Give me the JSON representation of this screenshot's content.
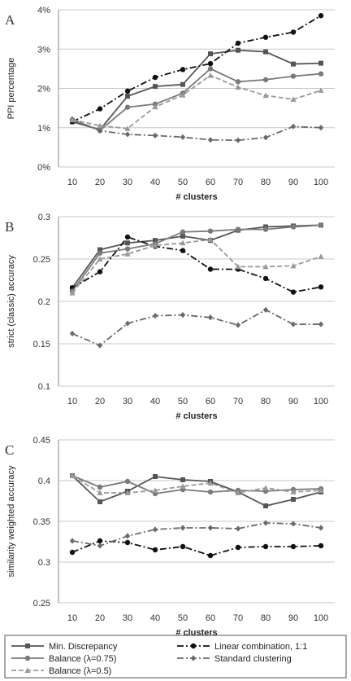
{
  "chart_data": [
    {
      "type": "line",
      "panel_label": "A",
      "x": [
        10,
        20,
        30,
        40,
        50,
        60,
        70,
        80,
        90,
        100
      ],
      "xlabel": "# clusters",
      "ylabel": "PPI percentage",
      "ylim": [
        0,
        4
      ],
      "yticks": [
        "0%",
        "1%",
        "2%",
        "3%",
        "4%"
      ],
      "grid": "horizontal",
      "series": [
        {
          "name": "Min. Discrepancy",
          "values": [
            1.15,
            0.95,
            1.8,
            2.05,
            2.1,
            2.88,
            2.97,
            2.93,
            2.62,
            2.64
          ]
        },
        {
          "name": "Linear combination, 1:1",
          "values": [
            1.15,
            1.48,
            1.93,
            2.28,
            2.48,
            2.63,
            3.15,
            3.3,
            3.43,
            3.85
          ]
        },
        {
          "name": "Balance (λ=0.75)",
          "values": [
            1.2,
            0.93,
            1.52,
            1.6,
            1.88,
            2.5,
            2.17,
            2.22,
            2.31,
            2.37
          ]
        },
        {
          "name": "Standard clustering",
          "values": [
            1.22,
            0.92,
            0.83,
            0.8,
            0.76,
            0.69,
            0.68,
            0.75,
            1.03,
            1.0
          ]
        },
        {
          "name": "Balance (λ=0.5)",
          "values": [
            1.2,
            1.05,
            0.98,
            1.53,
            1.83,
            2.33,
            2.03,
            1.82,
            1.72,
            1.95
          ]
        }
      ]
    },
    {
      "type": "line",
      "panel_label": "B",
      "x": [
        10,
        20,
        30,
        40,
        50,
        60,
        70,
        80,
        90,
        100
      ],
      "xlabel": "# clusters",
      "ylabel": "strict (classic) accuracy",
      "ylim": [
        0.1,
        0.3
      ],
      "yticks": [
        "0.1",
        "0.15",
        "0.2",
        "0.25",
        "0.3"
      ],
      "grid": "horizontal",
      "series": [
        {
          "name": "Min. Discrepancy",
          "values": [
            0.216,
            0.261,
            0.269,
            0.272,
            0.277,
            0.272,
            0.284,
            0.288,
            0.289,
            0.29
          ]
        },
        {
          "name": "Linear combination, 1:1",
          "values": [
            0.216,
            0.235,
            0.276,
            0.265,
            0.26,
            0.238,
            0.238,
            0.227,
            0.211,
            0.217
          ]
        },
        {
          "name": "Balance (λ=0.75)",
          "values": [
            0.212,
            0.257,
            0.262,
            0.268,
            0.282,
            0.283,
            0.285,
            0.285,
            0.288,
            0.29
          ]
        },
        {
          "name": "Standard clustering",
          "values": [
            0.162,
            0.148,
            0.174,
            0.183,
            0.184,
            0.181,
            0.172,
            0.19,
            0.173,
            0.173
          ]
        },
        {
          "name": "Balance (λ=0.5)",
          "values": [
            0.21,
            0.25,
            0.256,
            0.266,
            0.269,
            0.273,
            0.241,
            0.241,
            0.242,
            0.253
          ]
        }
      ]
    },
    {
      "type": "line",
      "panel_label": "C",
      "x": [
        10,
        20,
        30,
        40,
        50,
        60,
        70,
        80,
        90,
        100
      ],
      "xlabel": "# clusters",
      "ylabel": "similarity weighted accuracy",
      "ylim": [
        0.25,
        0.45
      ],
      "yticks": [
        "0.25",
        "0.3",
        "0.35",
        "0.4",
        "0.45"
      ],
      "grid": "horizontal",
      "series": [
        {
          "name": "Min. Discrepancy",
          "values": [
            0.406,
            0.374,
            0.387,
            0.405,
            0.401,
            0.399,
            0.386,
            0.369,
            0.377,
            0.386
          ]
        },
        {
          "name": "Linear combination, 1:1",
          "values": [
            0.312,
            0.326,
            0.324,
            0.315,
            0.319,
            0.308,
            0.318,
            0.319,
            0.319,
            0.32
          ]
        },
        {
          "name": "Balance (λ=0.75)",
          "values": [
            0.406,
            0.392,
            0.399,
            0.384,
            0.389,
            0.386,
            0.388,
            0.387,
            0.389,
            0.39
          ]
        },
        {
          "name": "Standard clustering",
          "values": [
            0.326,
            0.32,
            0.332,
            0.34,
            0.342,
            0.342,
            0.341,
            0.348,
            0.347,
            0.342
          ]
        },
        {
          "name": "Balance (λ=0.5)",
          "values": [
            0.406,
            0.385,
            0.385,
            0.388,
            0.393,
            0.397,
            0.385,
            0.391,
            0.386,
            0.388
          ]
        }
      ]
    }
  ],
  "legend": {
    "placement": "bottom",
    "entries": [
      {
        "name": "Min. Discrepancy",
        "color": "#555555",
        "dash": "solid",
        "marker": "square"
      },
      {
        "name": "Linear combination, 1:1",
        "color": "#111111",
        "dash": "dashdot",
        "marker": "circle"
      },
      {
        "name": "Balance (λ=0.75)",
        "color": "#7a7a7a",
        "dash": "solid",
        "marker": "circle"
      },
      {
        "name": "Standard clustering",
        "color": "#6a6a6a",
        "dash": "dashdot",
        "marker": "diamond"
      },
      {
        "name": "Balance (λ=0.5)",
        "color": "#9a9a9a",
        "dash": "dashed",
        "marker": "triangle"
      }
    ]
  }
}
